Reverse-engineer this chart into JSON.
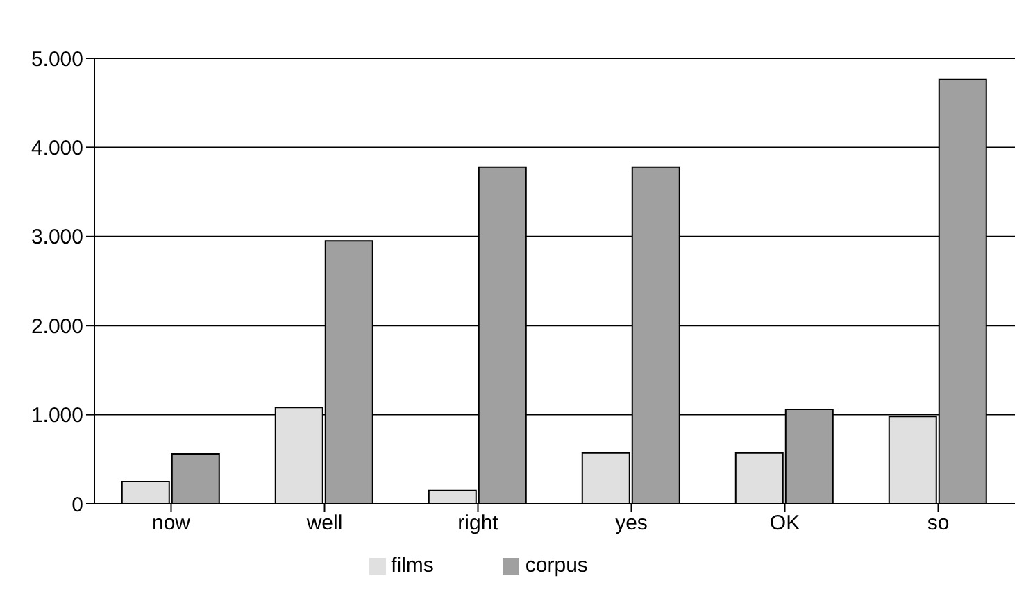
{
  "chart_data": {
    "type": "bar",
    "categories": [
      "now",
      "well",
      "right",
      "yes",
      "OK",
      "so"
    ],
    "series": [
      {
        "name": "films",
        "color": "#e0e0e0",
        "values": [
          250,
          1080,
          150,
          570,
          570,
          980
        ]
      },
      {
        "name": "corpus",
        "color": "#a0a0a0",
        "values": [
          560,
          2950,
          3780,
          3780,
          1060,
          4760
        ]
      }
    ],
    "ylim": [
      0,
      5000
    ],
    "yticks": [
      {
        "value": 0,
        "label": "0"
      },
      {
        "value": 1000,
        "label": "1.000"
      },
      {
        "value": 2000,
        "label": "2.000"
      },
      {
        "value": 3000,
        "label": "3.000"
      },
      {
        "value": 4000,
        "label": "4.000"
      },
      {
        "value": 5000,
        "label": "5.000"
      }
    ],
    "grid": "y",
    "legend": "bottom"
  }
}
